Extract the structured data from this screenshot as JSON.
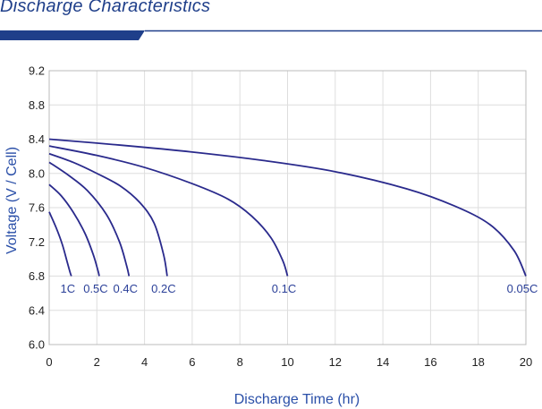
{
  "header": {
    "title": "Discharge Characteristics",
    "banner_color": "#1f3f8a"
  },
  "chart_data": {
    "type": "line",
    "title": "Discharge Characteristics",
    "xlabel": "Discharge Time (hr)",
    "ylabel": "Voltage (V / Cell)",
    "xlim": [
      0,
      20
    ],
    "ylim": [
      6.0,
      9.2
    ],
    "xticks": [
      0,
      2,
      4,
      6,
      8,
      10,
      12,
      14,
      16,
      18,
      20
    ],
    "yticks": [
      6.0,
      6.4,
      6.8,
      7.2,
      7.6,
      8.0,
      8.4,
      8.8,
      9.2
    ],
    "ytick_labels": [
      "6.0",
      "6.4",
      "6.8",
      "7.2",
      "7.6",
      "8.0",
      "8.4",
      "8.8",
      "9.2"
    ],
    "grid": true,
    "line_color": "#2a2a8c",
    "series": [
      {
        "name": "1C",
        "label": "1C",
        "x": [
          0,
          0.3,
          0.55,
          0.75,
          0.88,
          0.93
        ],
        "y": [
          7.55,
          7.36,
          7.17,
          6.97,
          6.84,
          6.8
        ]
      },
      {
        "name": "0.5C",
        "label": "0.5C",
        "x": [
          0,
          0.5,
          1.0,
          1.5,
          1.85,
          2.05,
          2.1
        ],
        "y": [
          7.87,
          7.74,
          7.55,
          7.3,
          7.05,
          6.86,
          6.8
        ]
      },
      {
        "name": "0.4C",
        "label": "0.4C",
        "x": [
          0,
          0.8,
          1.6,
          2.4,
          2.95,
          3.25,
          3.35
        ],
        "y": [
          8.13,
          7.98,
          7.8,
          7.52,
          7.2,
          6.92,
          6.8
        ]
      },
      {
        "name": "0.2C",
        "label": "0.2C",
        "x": [
          0,
          1.0,
          2.0,
          3.0,
          3.8,
          4.4,
          4.8,
          4.95
        ],
        "y": [
          8.23,
          8.13,
          8.0,
          7.85,
          7.66,
          7.42,
          7.05,
          6.8
        ]
      },
      {
        "name": "0.1C",
        "label": "0.1C",
        "x": [
          0,
          2.0,
          4.0,
          6.0,
          7.5,
          8.5,
          9.3,
          9.8,
          10.0
        ],
        "y": [
          8.32,
          8.21,
          8.07,
          7.88,
          7.7,
          7.5,
          7.25,
          6.98,
          6.8
        ]
      },
      {
        "name": "0.05C",
        "label": "0.05C",
        "x": [
          0,
          3,
          6,
          9,
          12,
          15,
          17,
          18.5,
          19.5,
          20.0
        ],
        "y": [
          8.4,
          8.33,
          8.25,
          8.15,
          8.02,
          7.82,
          7.62,
          7.4,
          7.1,
          6.8
        ]
      }
    ],
    "curve_label_y": 6.7
  }
}
